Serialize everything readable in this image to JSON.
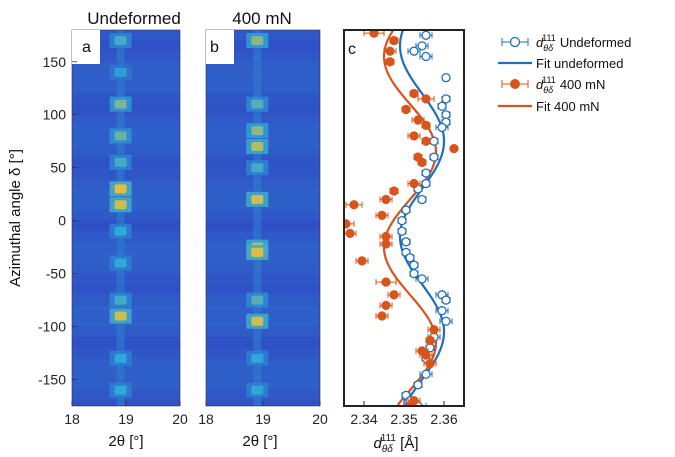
{
  "figure": {
    "panel_a": {
      "letter": "a",
      "title": "Undeformed"
    },
    "panel_b": {
      "letter": "b",
      "title": "400 mN"
    },
    "panel_c": {
      "letter": "c"
    },
    "y_axis_label": "Azimuthal angle δ [°]",
    "x_axis_label_ab": "2θ [°]",
    "x_axis_label_c_main": "d",
    "x_axis_label_c_sub": "θδ",
    "x_axis_label_c_sup": "111",
    "x_axis_label_c_unit": " [Å]"
  },
  "colors": {
    "undeformed": "#1f6fb8",
    "deformed": "#d9541a",
    "heat_low": "#2f3cc2",
    "heat_mid": "#2ea8d8",
    "heat_high": "#f2c230"
  },
  "chart_data": [
    {
      "type": "heatmap",
      "panel": "a",
      "title": "Undeformed",
      "xlabel": "2θ [°]",
      "ylabel": "Azimuthal angle δ [°]",
      "xlim": [
        18,
        20
      ],
      "ylim": [
        -175,
        180
      ],
      "xticks": [
        "18",
        "19",
        "20"
      ],
      "yticks": [
        "-150",
        "-100",
        "-50",
        "0",
        "50",
        "100",
        "150"
      ],
      "peak_center": 18.9,
      "bright_bands": [
        {
          "delta": 170,
          "intensity": 0.55
        },
        {
          "delta": 140,
          "intensity": 0.45
        },
        {
          "delta": 110,
          "intensity": 0.7
        },
        {
          "delta": 80,
          "intensity": 0.65
        },
        {
          "delta": 55,
          "intensity": 0.55
        },
        {
          "delta": 30,
          "intensity": 0.95
        },
        {
          "delta": 15,
          "intensity": 0.9
        },
        {
          "delta": -10,
          "intensity": 0.5
        },
        {
          "delta": -40,
          "intensity": 0.5
        },
        {
          "delta": -75,
          "intensity": 0.55
        },
        {
          "delta": -90,
          "intensity": 0.9
        },
        {
          "delta": -130,
          "intensity": 0.5
        },
        {
          "delta": -160,
          "intensity": 0.5
        }
      ]
    },
    {
      "type": "heatmap",
      "panel": "b",
      "title": "400 mN",
      "xlabel": "2θ [°]",
      "xlim": [
        18,
        20
      ],
      "xticks": [
        "18",
        "19",
        "20"
      ],
      "peak_center": 18.9,
      "bright_bands": [
        {
          "delta": 170,
          "intensity": 0.75
        },
        {
          "delta": 110,
          "intensity": 0.6
        },
        {
          "delta": 85,
          "intensity": 0.75
        },
        {
          "delta": 70,
          "intensity": 0.85
        },
        {
          "delta": 50,
          "intensity": 0.55
        },
        {
          "delta": 20,
          "intensity": 0.9
        },
        {
          "delta": -25,
          "intensity": 0.85
        },
        {
          "delta": -30,
          "intensity": 0.95
        },
        {
          "delta": -75,
          "intensity": 0.6
        },
        {
          "delta": -95,
          "intensity": 0.9
        },
        {
          "delta": -130,
          "intensity": 0.5
        },
        {
          "delta": -160,
          "intensity": 0.5
        }
      ]
    },
    {
      "type": "scatter",
      "panel": "c",
      "xlabel": "d θδ 111 [Å]",
      "xlim": [
        2.335,
        2.365
      ],
      "ylim": [
        -175,
        180
      ],
      "xticks": [
        "2.34",
        "2.35",
        "2.36"
      ],
      "legend_position": "right",
      "series": [
        {
          "name": "d θδ 111 Undeformed",
          "marker": "open-circle",
          "color": "#1f6fb8",
          "points": [
            {
              "x": 2.3555,
              "y": 175,
              "err": 0.0015
            },
            {
              "x": 2.3545,
              "y": 165,
              "err": 0.0015
            },
            {
              "x": 2.3525,
              "y": 160,
              "err": 0.0015
            },
            {
              "x": 2.3555,
              "y": 155,
              "err": 0.0015
            },
            {
              "x": 2.3605,
              "y": 135,
              "err": 0.0005
            },
            {
              "x": 2.3605,
              "y": 115,
              "err": 0.001
            },
            {
              "x": 2.3595,
              "y": 108,
              "err": 0.001
            },
            {
              "x": 2.3605,
              "y": 100,
              "err": 0.001
            },
            {
              "x": 2.3605,
              "y": 93,
              "err": 0.001
            },
            {
              "x": 2.3595,
              "y": 88,
              "err": 0.0015
            },
            {
              "x": 2.3575,
              "y": 75,
              "err": 0.001
            },
            {
              "x": 2.3575,
              "y": 60,
              "err": 0.001
            },
            {
              "x": 2.3555,
              "y": 45,
              "err": 0.001
            },
            {
              "x": 2.3555,
              "y": 35,
              "err": 0.001
            },
            {
              "x": 2.3535,
              "y": 30,
              "err": 0.001
            },
            {
              "x": 2.3545,
              "y": 20,
              "err": 0.001
            },
            {
              "x": 2.3505,
              "y": 10,
              "err": 0.001
            },
            {
              "x": 2.3495,
              "y": 0,
              "err": 0.001
            },
            {
              "x": 2.3495,
              "y": -10,
              "err": 0.001
            },
            {
              "x": 2.3505,
              "y": -20,
              "err": 0.001
            },
            {
              "x": 2.3505,
              "y": -30,
              "err": 0.001
            },
            {
              "x": 2.3515,
              "y": -35,
              "err": 0.001
            },
            {
              "x": 2.3525,
              "y": -42,
              "err": 0.001
            },
            {
              "x": 2.3525,
              "y": -50,
              "err": 0.001
            },
            {
              "x": 2.3545,
              "y": -55,
              "err": 0.0015
            },
            {
              "x": 2.3595,
              "y": -70,
              "err": 0.0015
            },
            {
              "x": 2.3605,
              "y": -75,
              "err": 0.001
            },
            {
              "x": 2.3595,
              "y": -85,
              "err": 0.0015
            },
            {
              "x": 2.3605,
              "y": -95,
              "err": 0.0015
            },
            {
              "x": 2.3575,
              "y": -110,
              "err": 0.0015
            },
            {
              "x": 2.3565,
              "y": -120,
              "err": 0.001
            },
            {
              "x": 2.3555,
              "y": -130,
              "err": 0.001
            },
            {
              "x": 2.3555,
              "y": -145,
              "err": 0.0015
            },
            {
              "x": 2.3535,
              "y": -155,
              "err": 0.001
            },
            {
              "x": 2.3505,
              "y": -165,
              "err": 0.001
            },
            {
              "x": 2.3515,
              "y": -170,
              "err": 0.0015
            },
            {
              "x": 2.3535,
              "y": -175,
              "err": 0.002
            }
          ]
        },
        {
          "name": "d θδ 111 400 mN",
          "marker": "filled-circle",
          "color": "#d9541a",
          "points": [
            {
              "x": 2.3425,
              "y": 177,
              "err": 0.0025
            },
            {
              "x": 2.3475,
              "y": 170,
              "err": 0.001
            },
            {
              "x": 2.3465,
              "y": 160,
              "err": 0.0015
            },
            {
              "x": 2.3465,
              "y": 150,
              "err": 0.001
            },
            {
              "x": 2.3525,
              "y": 120,
              "err": 0.001
            },
            {
              "x": 2.3555,
              "y": 115,
              "err": 0.002
            },
            {
              "x": 2.3505,
              "y": 105,
              "err": 0.001
            },
            {
              "x": 2.3535,
              "y": 95,
              "err": 0.0015
            },
            {
              "x": 2.3555,
              "y": 90,
              "err": 0.001
            },
            {
              "x": 2.3525,
              "y": 80,
              "err": 0.0015
            },
            {
              "x": 2.3555,
              "y": 75,
              "err": 0.001
            },
            {
              "x": 2.3625,
              "y": 68,
              "err": 0.0005
            },
            {
              "x": 2.3535,
              "y": 60,
              "err": 0.001
            },
            {
              "x": 2.3545,
              "y": 55,
              "err": 0.001
            },
            {
              "x": 2.3525,
              "y": 35,
              "err": 0.0015
            },
            {
              "x": 2.3475,
              "y": 28,
              "err": 0.001
            },
            {
              "x": 2.3455,
              "y": 20,
              "err": 0.0015
            },
            {
              "x": 2.3375,
              "y": 15,
              "err": 0.002
            },
            {
              "x": 2.3445,
              "y": 5,
              "err": 0.0015
            },
            {
              "x": 2.3355,
              "y": -3,
              "err": 0.002
            },
            {
              "x": 2.3365,
              "y": -12,
              "err": 0.0015
            },
            {
              "x": 2.3455,
              "y": -15,
              "err": 0.0015
            },
            {
              "x": 2.3455,
              "y": -22,
              "err": 0.0015
            },
            {
              "x": 2.3395,
              "y": -38,
              "err": 0.0015
            },
            {
              "x": 2.3455,
              "y": -58,
              "err": 0.0025
            },
            {
              "x": 2.3475,
              "y": -70,
              "err": 0.0015
            },
            {
              "x": 2.3455,
              "y": -80,
              "err": 0.0015
            },
            {
              "x": 2.3445,
              "y": -90,
              "err": 0.0015
            },
            {
              "x": 2.3575,
              "y": -103,
              "err": 0.0015
            },
            {
              "x": 2.3565,
              "y": -113,
              "err": 0.001
            },
            {
              "x": 2.3545,
              "y": -123,
              "err": 0.0015
            },
            {
              "x": 2.3555,
              "y": -127,
              "err": 0.0015
            },
            {
              "x": 2.3565,
              "y": -135,
              "err": 0.0015
            },
            {
              "x": 2.3525,
              "y": -170,
              "err": 0.0015
            },
            {
              "x": 2.3515,
              "y": -175,
              "err": 0.001
            }
          ]
        }
      ],
      "fits": [
        {
          "name": "Fit undeformed",
          "color": "#1f6fb8",
          "mean": 2.3545,
          "amplitude": 0.0055,
          "phase_deg": 75,
          "period_deg": 180
        },
        {
          "name": "Fit 400 mN",
          "color": "#d9541a",
          "mean": 2.3515,
          "amplitude": 0.0065,
          "phase_deg": 65,
          "period_deg": 180
        }
      ]
    }
  ]
}
